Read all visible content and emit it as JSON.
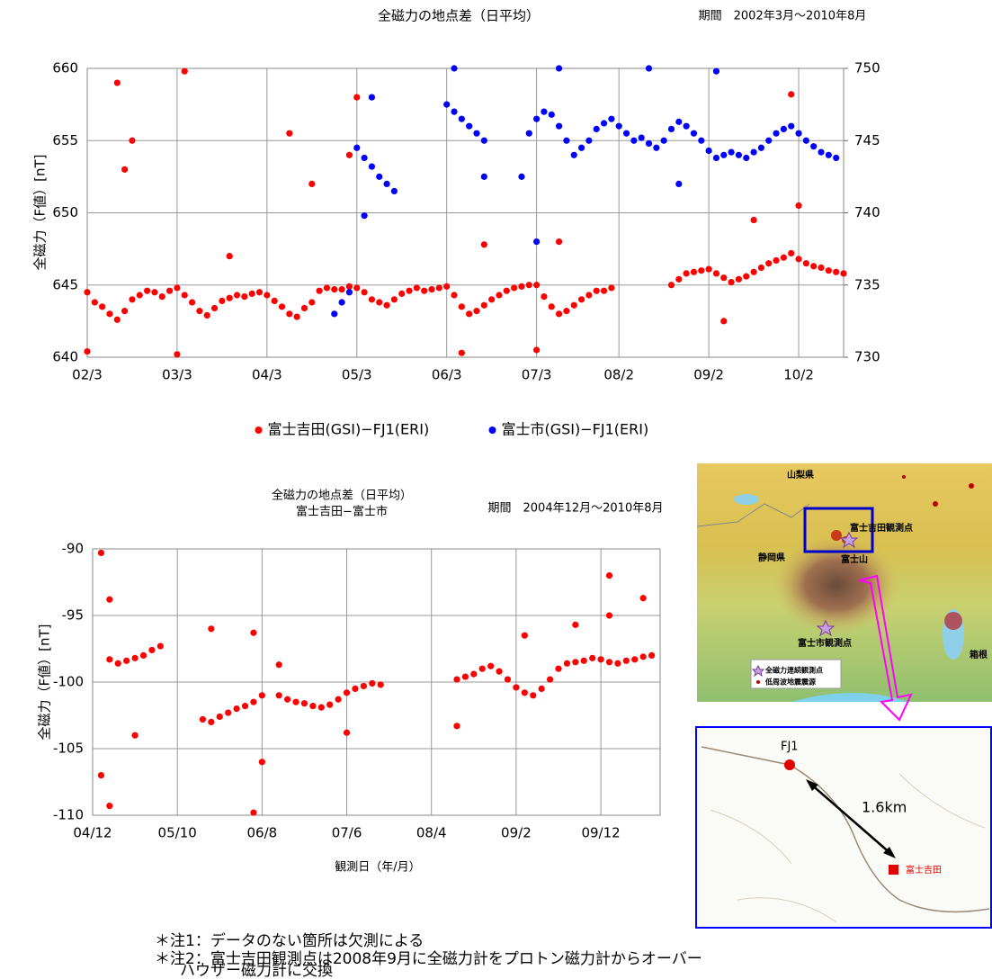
{
  "chart_data": [
    {
      "type": "scatter",
      "title": "全磁力の地点差（日平均）",
      "period": "期間　2002年3月～2010年8月",
      "ylabel": "全磁力（F値）[nT]",
      "xlim": [
        "2002-03",
        "2010-08"
      ],
      "xticks": [
        {
          "value": "2002-03",
          "label": "02/3"
        },
        {
          "value": "2003-03",
          "label": "03/3"
        },
        {
          "value": "2004-03",
          "label": "04/3"
        },
        {
          "value": "2005-03",
          "label": "05/3"
        },
        {
          "value": "2006-03",
          "label": "06/3"
        },
        {
          "value": "2007-03",
          "label": "07/3"
        },
        {
          "value": "2008-02",
          "label": "08/2"
        },
        {
          "value": "2009-02",
          "label": "09/2"
        },
        {
          "value": "2010-02",
          "label": "10/2"
        }
      ],
      "ylim": [
        640,
        660
      ],
      "yticks": [
        640,
        645,
        650,
        655,
        660
      ],
      "y2lim": [
        730,
        750
      ],
      "y2ticks": [
        730,
        735,
        740,
        745,
        750
      ],
      "grid": true,
      "series": [
        {
          "name": "富士吉田(GSI)−FJ1(ERI)",
          "color": "#ff0000",
          "x": [
            "2002-03",
            "2002-04",
            "2002-05",
            "2002-06",
            "2002-07",
            "2002-08",
            "2002-09",
            "2002-10",
            "2002-11",
            "2002-12",
            "2003-01",
            "2003-02",
            "2003-03",
            "2003-04",
            "2003-05",
            "2003-06",
            "2003-07",
            "2003-08",
            "2003-09",
            "2003-10",
            "2003-11",
            "2003-12",
            "2004-01",
            "2004-02",
            "2004-03",
            "2004-04",
            "2004-05",
            "2004-06",
            "2004-07",
            "2004-08",
            "2004-09",
            "2004-10",
            "2004-11",
            "2004-12",
            "2005-01",
            "2005-02",
            "2005-03",
            "2005-04",
            "2005-05",
            "2005-06",
            "2005-07",
            "2005-08",
            "2005-09",
            "2005-10",
            "2005-11",
            "2005-12",
            "2006-01",
            "2006-02",
            "2006-03",
            "2006-04",
            "2006-05",
            "2006-06",
            "2006-07",
            "2006-08",
            "2006-09",
            "2006-10",
            "2006-11",
            "2006-12",
            "2007-01",
            "2007-02",
            "2007-03",
            "2007-04",
            "2007-05",
            "2007-06",
            "2007-07",
            "2007-08",
            "2007-09",
            "2007-10",
            "2007-11",
            "2007-12",
            "2008-01",
            "2008-09",
            "2008-10",
            "2008-11",
            "2008-12",
            "2009-01",
            "2009-02",
            "2009-03",
            "2009-04",
            "2009-05",
            "2009-06",
            "2009-07",
            "2009-08",
            "2009-09",
            "2009-10",
            "2009-11",
            "2009-12",
            "2010-01",
            "2010-02",
            "2010-03",
            "2010-04",
            "2010-05",
            "2010-06",
            "2010-07",
            "2010-08",
            "2002-07",
            "2002-09",
            "2002-08",
            "2003-04",
            "2002-03",
            "2003-03",
            "2004-06",
            "2004-09",
            "2005-03",
            "2005-02",
            "2006-05",
            "2007-03",
            "2007-06",
            "2009-08",
            "2010-02",
            "2010-01",
            "2009-04",
            "2003-10",
            "2006-08"
          ],
          "values": [
            644.5,
            643.8,
            643.5,
            643.0,
            642.6,
            643.2,
            644.0,
            644.3,
            644.6,
            644.5,
            644.2,
            644.6,
            644.8,
            644.3,
            643.8,
            643.2,
            642.9,
            643.4,
            643.9,
            644.1,
            644.3,
            644.2,
            644.4,
            644.5,
            644.3,
            643.9,
            643.5,
            643.0,
            642.8,
            643.4,
            643.8,
            644.6,
            644.8,
            644.7,
            644.7,
            644.9,
            644.8,
            644.5,
            644.0,
            643.8,
            643.6,
            644.0,
            644.4,
            644.6,
            644.8,
            644.6,
            644.7,
            644.8,
            644.9,
            644.3,
            643.5,
            643.0,
            643.2,
            643.6,
            644.0,
            644.3,
            644.6,
            644.8,
            644.9,
            645.0,
            645.0,
            644.2,
            643.5,
            643.0,
            643.2,
            643.6,
            644.0,
            644.3,
            644.6,
            644.6,
            644.8,
            645.0,
            645.4,
            645.8,
            645.9,
            646.0,
            646.1,
            645.8,
            645.5,
            645.2,
            645.4,
            645.6,
            645.9,
            646.2,
            646.5,
            646.7,
            646.9,
            647.2,
            646.8,
            646.5,
            646.3,
            646.2,
            646.0,
            645.9,
            645.8,
            659.0,
            655.0,
            653.0,
            659.8,
            640.4,
            640.2,
            655.5,
            652.0,
            658.0,
            654.0,
            640.3,
            640.5,
            648.0,
            649.5,
            650.5,
            658.2,
            642.5,
            647.0,
            647.8
          ]
        },
        {
          "name": "富士市(GSI)−FJ1(ERI)",
          "color": "#0000ff",
          "axis": "y2",
          "x": [
            "2004-12",
            "2005-01",
            "2005-02",
            "2005-03",
            "2005-04",
            "2005-05",
            "2005-06",
            "2005-07",
            "2005-08",
            "2006-03",
            "2006-04",
            "2006-05",
            "2006-06",
            "2006-07",
            "2006-08",
            "2007-01",
            "2007-02",
            "2007-03",
            "2007-04",
            "2007-05",
            "2007-06",
            "2007-07",
            "2007-08",
            "2007-09",
            "2007-10",
            "2007-11",
            "2007-12",
            "2008-01",
            "2008-02",
            "2008-03",
            "2008-04",
            "2008-05",
            "2008-06",
            "2008-07",
            "2008-08",
            "2008-09",
            "2008-10",
            "2008-11",
            "2008-12",
            "2009-01",
            "2009-02",
            "2009-03",
            "2009-04",
            "2009-05",
            "2009-06",
            "2009-07",
            "2009-08",
            "2009-09",
            "2009-10",
            "2009-11",
            "2009-12",
            "2010-01",
            "2010-02",
            "2010-03",
            "2010-04",
            "2010-05",
            "2010-06",
            "2010-07",
            "2006-04",
            "2007-06",
            "2008-06",
            "2009-03",
            "2007-03",
            "2005-04",
            "2005-05",
            "2006-08",
            "2008-10"
          ],
          "values": [
            733.0,
            733.8,
            734.5,
            744.5,
            743.8,
            743.2,
            742.5,
            742.0,
            741.5,
            747.5,
            747.0,
            746.5,
            746.0,
            745.5,
            745.0,
            742.5,
            745.5,
            746.5,
            747.0,
            746.8,
            746.0,
            745.0,
            744.0,
            744.5,
            745.0,
            745.8,
            746.2,
            746.5,
            746.0,
            745.5,
            745.0,
            745.2,
            744.8,
            744.5,
            745.0,
            745.8,
            746.3,
            746.0,
            745.5,
            745.0,
            744.3,
            743.8,
            744.0,
            744.2,
            744.0,
            743.8,
            744.2,
            744.5,
            745.0,
            745.5,
            745.8,
            746.0,
            745.5,
            745.0,
            744.6,
            744.2,
            744.0,
            743.8,
            750.0,
            750.0,
            750.0,
            749.8,
            738.0,
            739.8,
            748.0,
            742.5,
            742.0
          ]
        }
      ]
    },
    {
      "type": "scatter",
      "title": "全磁力の地点差（日平均）",
      "subtitle": "富士吉田−富士市",
      "period": "期間　2004年12月～2010年8月",
      "xlabel": "観測日（年/月）",
      "ylabel": "全磁力（F値）[nT]",
      "xlim": [
        "2004-12",
        "2010-07"
      ],
      "xticks": [
        {
          "value": "2004-12",
          "label": "04/12"
        },
        {
          "value": "2005-10",
          "label": "05/10"
        },
        {
          "value": "2006-08",
          "label": "06/8"
        },
        {
          "value": "2007-06",
          "label": "07/6"
        },
        {
          "value": "2008-04",
          "label": "08/4"
        },
        {
          "value": "2009-02",
          "label": "09/2"
        },
        {
          "value": "2009-12",
          "label": "09/12"
        }
      ],
      "ylim": [
        -110,
        -90
      ],
      "yticks": [
        -110,
        -105,
        -100,
        -95,
        -90
      ],
      "grid": true,
      "color": "#ff0000",
      "x": [
        "2005-01",
        "2005-02",
        "2005-03",
        "2005-04",
        "2005-05",
        "2005-06",
        "2005-07",
        "2005-08",
        "2005-01",
        "2005-02",
        "2005-05",
        "2005-02",
        "2006-01",
        "2006-02",
        "2006-03",
        "2006-04",
        "2006-05",
        "2006-06",
        "2006-07",
        "2006-08",
        "2006-02",
        "2006-07",
        "2006-07",
        "2006-08",
        "2006-10",
        "2006-11",
        "2006-12",
        "2007-01",
        "2007-02",
        "2007-03",
        "2007-04",
        "2007-05",
        "2007-06",
        "2007-07",
        "2007-08",
        "2007-09",
        "2007-10",
        "2006-10",
        "2007-06",
        "2008-07",
        "2008-08",
        "2008-09",
        "2008-10",
        "2008-11",
        "2008-12",
        "2009-01",
        "2009-02",
        "2009-03",
        "2009-04",
        "2009-05",
        "2009-06",
        "2009-07",
        "2009-08",
        "2009-09",
        "2009-10",
        "2009-11",
        "2009-12",
        "2010-01",
        "2010-02",
        "2010-03",
        "2010-04",
        "2010-05",
        "2010-06",
        "2008-07",
        "2009-09",
        "2010-01",
        "2010-01",
        "2010-05",
        "2009-03"
      ],
      "values": [
        -90.3,
        -98.3,
        -98.6,
        -98.4,
        -98.2,
        -98.0,
        -97.6,
        -97.3,
        -107.0,
        -109.3,
        -104.0,
        -93.8,
        -102.8,
        -103.0,
        -102.6,
        -102.3,
        -102.0,
        -101.8,
        -101.5,
        -101.0,
        -96.0,
        -96.3,
        -109.8,
        -106.0,
        -101.0,
        -101.3,
        -101.5,
        -101.6,
        -101.8,
        -101.9,
        -101.7,
        -101.3,
        -100.8,
        -100.5,
        -100.3,
        -100.1,
        -100.2,
        -98.7,
        -103.8,
        -99.8,
        -99.6,
        -99.4,
        -99.0,
        -98.8,
        -99.2,
        -99.8,
        -100.4,
        -100.8,
        -101.0,
        -100.5,
        -99.8,
        -99.0,
        -98.6,
        -98.5,
        -98.4,
        -98.2,
        -98.3,
        -98.5,
        -98.6,
        -98.4,
        -98.3,
        -98.1,
        -98.0,
        -103.3,
        -95.7,
        -92.0,
        -95.0,
        -93.7,
        -96.5
      ]
    }
  ],
  "map": {
    "pref1": "山梨県",
    "pref2": "静岡県",
    "station1": "富士吉田観測点",
    "mountain": "富士山",
    "station2": "富士市観測点",
    "lake": "箱根",
    "legend1": "全磁力連続観測点",
    "legend2": "低周波地震震源",
    "inset": {
      "point1": "FJ1",
      "distance": "1.6km",
      "point2": "富士吉田"
    }
  },
  "notes": [
    "＊注1：データのない箇所は欠測による",
    "＊注2：富士吉田観測点は2008年9月に全磁力計をプロトン磁力計からオーバー",
    "ハウザー磁力計に交換"
  ]
}
